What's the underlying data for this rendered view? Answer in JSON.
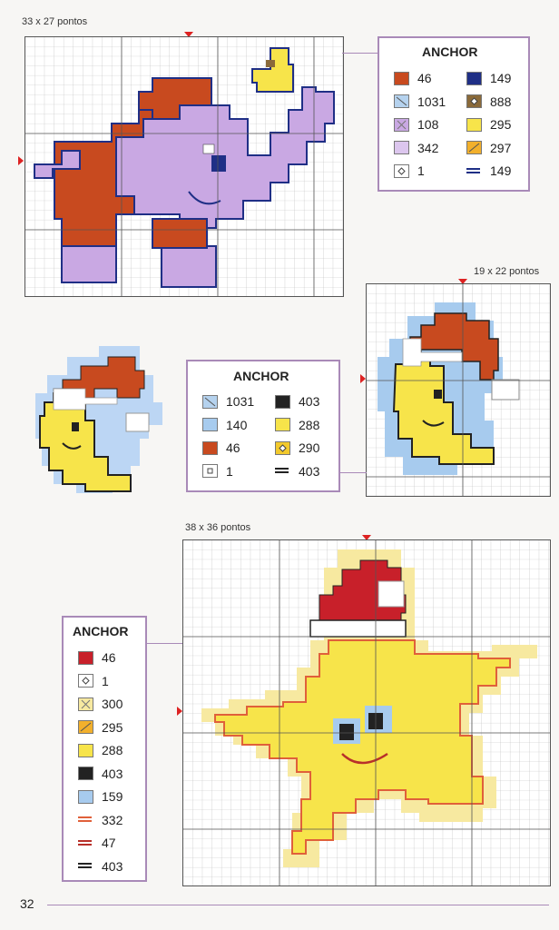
{
  "page_number": "32",
  "colors": {
    "red": "#c84a1f",
    "lilac": "#c9a8e3",
    "navy": "#1f2f86",
    "yellow": "#f7e44a",
    "light_blue": "#a7cbee",
    "black": "#222222",
    "frame": "#a98ab8"
  },
  "chart1": {
    "dimensions": "33 x 27 pontos",
    "legend_title": "ANCHOR",
    "legend": [
      {
        "code": "46",
        "swatch": "solid",
        "color": "#c84a1f"
      },
      {
        "code": "149",
        "swatch": "solid",
        "color": "#1f2f86"
      },
      {
        "code": "1031",
        "swatch": "backslash",
        "color": "#b5d2ee"
      },
      {
        "code": "888",
        "swatch": "diamond-dark",
        "color": "#8a6a3a"
      },
      {
        "code": "108",
        "swatch": "cross",
        "color": "#c9a8e3"
      },
      {
        "code": "295",
        "swatch": "solid",
        "color": "#f7e44a"
      },
      {
        "code": "342",
        "swatch": "solid",
        "color": "#dcc6ee"
      },
      {
        "code": "297",
        "swatch": "slash",
        "color": "#f2b02c"
      },
      {
        "code": "1",
        "swatch": "diamond",
        "color": "#ffffff"
      },
      {
        "code": "149",
        "swatch": "line",
        "color": "#1f2f86"
      }
    ]
  },
  "chart2": {
    "dimensions": "19 x 22 pontos",
    "legend_title": "ANCHOR",
    "legend": [
      {
        "code": "1031",
        "swatch": "backslash",
        "color": "#b5d2ee"
      },
      {
        "code": "403",
        "swatch": "solid",
        "color": "#222222"
      },
      {
        "code": "140",
        "swatch": "solid",
        "color": "#a7cbee"
      },
      {
        "code": "288",
        "swatch": "solid",
        "color": "#f7e44a"
      },
      {
        "code": "46",
        "swatch": "solid",
        "color": "#c84a1f"
      },
      {
        "code": "290",
        "swatch": "diamond-dark",
        "color": "#f2c92c"
      },
      {
        "code": "1",
        "swatch": "square",
        "color": "#ffffff"
      },
      {
        "code": "403",
        "swatch": "line",
        "color": "#222222"
      }
    ]
  },
  "chart3": {
    "dimensions": "38 x 36 pontos",
    "legend_title": "ANCHOR",
    "legend": [
      {
        "code": "46",
        "swatch": "solid",
        "color": "#c8202a"
      },
      {
        "code": "1",
        "swatch": "diamond",
        "color": "#ffffff"
      },
      {
        "code": "300",
        "swatch": "cross",
        "color": "#f7e9a0"
      },
      {
        "code": "295",
        "swatch": "slash",
        "color": "#f2b02c"
      },
      {
        "code": "288",
        "swatch": "solid",
        "color": "#f7e44a"
      },
      {
        "code": "403",
        "swatch": "solid",
        "color": "#222222"
      },
      {
        "code": "159",
        "swatch": "solid",
        "color": "#a7cbee"
      },
      {
        "code": "332",
        "swatch": "line",
        "color": "#e0603a"
      },
      {
        "code": "47",
        "swatch": "line",
        "color": "#b8302a"
      },
      {
        "code": "403",
        "swatch": "line",
        "color": "#222222"
      }
    ]
  }
}
